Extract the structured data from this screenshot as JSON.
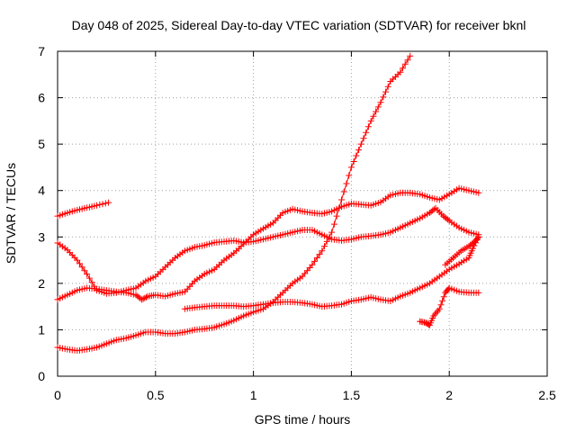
{
  "chart_data": {
    "type": "scatter",
    "title": "Day 048 of 2025, Sidereal Day-to-day VTEC variation (SDTVAR) for receiver bknl",
    "xlabel": "GPS time / hours",
    "ylabel": "SDTVAR / TECUs",
    "xlim": [
      0,
      2.5
    ],
    "ylim": [
      0,
      7
    ],
    "xticks": [
      0,
      0.5,
      1,
      1.5,
      2,
      2.5
    ],
    "xtick_labels": [
      "0",
      "0.5",
      "1",
      "1.5",
      "2",
      "2.5"
    ],
    "yticks": [
      0,
      1,
      2,
      3,
      4,
      5,
      6,
      7
    ],
    "ytick_labels": [
      "0",
      "1",
      "2",
      "3",
      "4",
      "5",
      "6",
      "7"
    ],
    "grid": true,
    "marker": "+",
    "color": "#ff0000",
    "series": [
      {
        "name": "s1",
        "points": [
          [
            0,
            3.45
          ],
          [
            0.05,
            3.52
          ],
          [
            0.1,
            3.58
          ],
          [
            0.15,
            3.63
          ],
          [
            0.2,
            3.68
          ],
          [
            0.26,
            3.74
          ]
        ]
      },
      {
        "name": "s2",
        "points": [
          [
            0,
            2.87
          ],
          [
            0.05,
            2.72
          ],
          [
            0.1,
            2.5
          ],
          [
            0.15,
            2.2
          ],
          [
            0.2,
            1.85
          ],
          [
            0.25,
            1.78
          ],
          [
            0.3,
            1.8
          ],
          [
            0.35,
            1.85
          ],
          [
            0.4,
            1.9
          ],
          [
            0.45,
            2.05
          ],
          [
            0.5,
            2.15
          ],
          [
            0.55,
            2.35
          ],
          [
            0.6,
            2.55
          ],
          [
            0.65,
            2.7
          ],
          [
            0.7,
            2.78
          ],
          [
            0.75,
            2.82
          ],
          [
            0.8,
            2.88
          ],
          [
            0.85,
            2.9
          ],
          [
            0.9,
            2.92
          ],
          [
            0.95,
            2.88
          ],
          [
            1.0,
            2.9
          ],
          [
            1.05,
            2.95
          ],
          [
            1.1,
            3.0
          ],
          [
            1.15,
            3.05
          ],
          [
            1.2,
            3.1
          ],
          [
            1.25,
            3.15
          ],
          [
            1.3,
            3.15
          ],
          [
            1.35,
            3.05
          ],
          [
            1.4,
            2.95
          ],
          [
            1.45,
            2.92
          ],
          [
            1.5,
            2.95
          ],
          [
            1.55,
            3.0
          ],
          [
            1.6,
            3.02
          ],
          [
            1.65,
            3.05
          ],
          [
            1.7,
            3.1
          ],
          [
            1.75,
            3.2
          ],
          [
            1.8,
            3.3
          ],
          [
            1.85,
            3.4
          ],
          [
            1.9,
            3.52
          ],
          [
            1.93,
            3.62
          ],
          [
            1.97,
            3.45
          ],
          [
            2.0,
            3.35
          ],
          [
            2.05,
            3.2
          ],
          [
            2.1,
            3.1
          ],
          [
            2.15,
            3.05
          ]
        ]
      },
      {
        "name": "s3",
        "points": [
          [
            0,
            1.65
          ],
          [
            0.05,
            1.75
          ],
          [
            0.1,
            1.85
          ],
          [
            0.15,
            1.9
          ],
          [
            0.2,
            1.88
          ],
          [
            0.25,
            1.85
          ],
          [
            0.3,
            1.82
          ],
          [
            0.35,
            1.8
          ],
          [
            0.4,
            1.75
          ],
          [
            0.43,
            1.65
          ],
          [
            0.46,
            1.72
          ],
          [
            0.5,
            1.75
          ],
          [
            0.55,
            1.72
          ],
          [
            0.6,
            1.78
          ],
          [
            0.65,
            1.82
          ],
          [
            0.7,
            2.05
          ],
          [
            0.75,
            2.2
          ],
          [
            0.8,
            2.3
          ],
          [
            0.85,
            2.5
          ],
          [
            0.9,
            2.65
          ],
          [
            0.95,
            2.85
          ],
          [
            1.0,
            3.05
          ],
          [
            1.05,
            3.18
          ],
          [
            1.1,
            3.3
          ],
          [
            1.15,
            3.52
          ],
          [
            1.2,
            3.6
          ],
          [
            1.25,
            3.55
          ],
          [
            1.3,
            3.52
          ],
          [
            1.35,
            3.5
          ],
          [
            1.4,
            3.55
          ],
          [
            1.45,
            3.65
          ],
          [
            1.5,
            3.72
          ],
          [
            1.55,
            3.7
          ],
          [
            1.6,
            3.68
          ],
          [
            1.65,
            3.75
          ],
          [
            1.7,
            3.9
          ],
          [
            1.75,
            3.95
          ],
          [
            1.8,
            3.95
          ],
          [
            1.85,
            3.92
          ],
          [
            1.9,
            3.85
          ],
          [
            1.95,
            3.8
          ],
          [
            2.0,
            3.92
          ],
          [
            2.05,
            4.05
          ],
          [
            2.1,
            4.0
          ],
          [
            2.15,
            3.95
          ]
        ]
      },
      {
        "name": "s4",
        "points": [
          [
            0,
            0.62
          ],
          [
            0.05,
            0.58
          ],
          [
            0.1,
            0.55
          ],
          [
            0.15,
            0.58
          ],
          [
            0.2,
            0.62
          ],
          [
            0.25,
            0.7
          ],
          [
            0.3,
            0.78
          ],
          [
            0.35,
            0.82
          ],
          [
            0.4,
            0.88
          ],
          [
            0.45,
            0.95
          ],
          [
            0.5,
            0.95
          ],
          [
            0.55,
            0.92
          ],
          [
            0.6,
            0.92
          ],
          [
            0.65,
            0.95
          ],
          [
            0.7,
            1.0
          ],
          [
            0.75,
            1.02
          ],
          [
            0.8,
            1.05
          ],
          [
            0.85,
            1.12
          ],
          [
            0.9,
            1.2
          ],
          [
            0.95,
            1.3
          ],
          [
            1.0,
            1.38
          ],
          [
            1.05,
            1.45
          ],
          [
            1.1,
            1.6
          ],
          [
            1.15,
            1.8
          ],
          [
            1.2,
            2.0
          ],
          [
            1.25,
            2.15
          ],
          [
            1.3,
            2.4
          ],
          [
            1.35,
            2.7
          ],
          [
            1.4,
            3.1
          ],
          [
            1.45,
            3.8
          ],
          [
            1.5,
            4.5
          ],
          [
            1.55,
            5.0
          ],
          [
            1.6,
            5.5
          ],
          [
            1.65,
            5.9
          ],
          [
            1.7,
            6.35
          ],
          [
            1.75,
            6.55
          ],
          [
            1.8,
            6.9
          ]
        ]
      },
      {
        "name": "s5",
        "points": [
          [
            0.65,
            1.45
          ],
          [
            0.7,
            1.48
          ],
          [
            0.75,
            1.5
          ],
          [
            0.8,
            1.52
          ],
          [
            0.85,
            1.52
          ],
          [
            0.9,
            1.52
          ],
          [
            0.95,
            1.5
          ],
          [
            1.0,
            1.52
          ],
          [
            1.05,
            1.55
          ],
          [
            1.1,
            1.58
          ],
          [
            1.15,
            1.6
          ],
          [
            1.2,
            1.6
          ],
          [
            1.25,
            1.58
          ],
          [
            1.3,
            1.55
          ],
          [
            1.35,
            1.5
          ],
          [
            1.4,
            1.52
          ],
          [
            1.45,
            1.55
          ],
          [
            1.5,
            1.62
          ],
          [
            1.55,
            1.65
          ],
          [
            1.6,
            1.7
          ],
          [
            1.65,
            1.65
          ],
          [
            1.7,
            1.62
          ],
          [
            1.75,
            1.72
          ],
          [
            1.8,
            1.8
          ],
          [
            1.85,
            1.9
          ],
          [
            1.9,
            2.0
          ],
          [
            1.95,
            2.15
          ],
          [
            2.0,
            2.3
          ],
          [
            2.05,
            2.42
          ],
          [
            2.1,
            2.55
          ],
          [
            2.12,
            2.75
          ],
          [
            2.15,
            3.0
          ]
        ]
      },
      {
        "name": "s6",
        "points": [
          [
            1.85,
            1.18
          ],
          [
            1.88,
            1.15
          ],
          [
            1.9,
            1.1
          ],
          [
            1.92,
            1.3
          ],
          [
            1.95,
            1.45
          ],
          [
            1.98,
            1.8
          ],
          [
            2.0,
            1.9
          ],
          [
            2.05,
            1.82
          ],
          [
            2.1,
            1.8
          ],
          [
            2.15,
            1.8
          ]
        ]
      },
      {
        "name": "s7",
        "points": [
          [
            1.98,
            2.4
          ],
          [
            2.02,
            2.55
          ],
          [
            2.06,
            2.7
          ],
          [
            2.1,
            2.8
          ],
          [
            2.13,
            2.9
          ],
          [
            2.15,
            3.0
          ]
        ]
      }
    ]
  }
}
